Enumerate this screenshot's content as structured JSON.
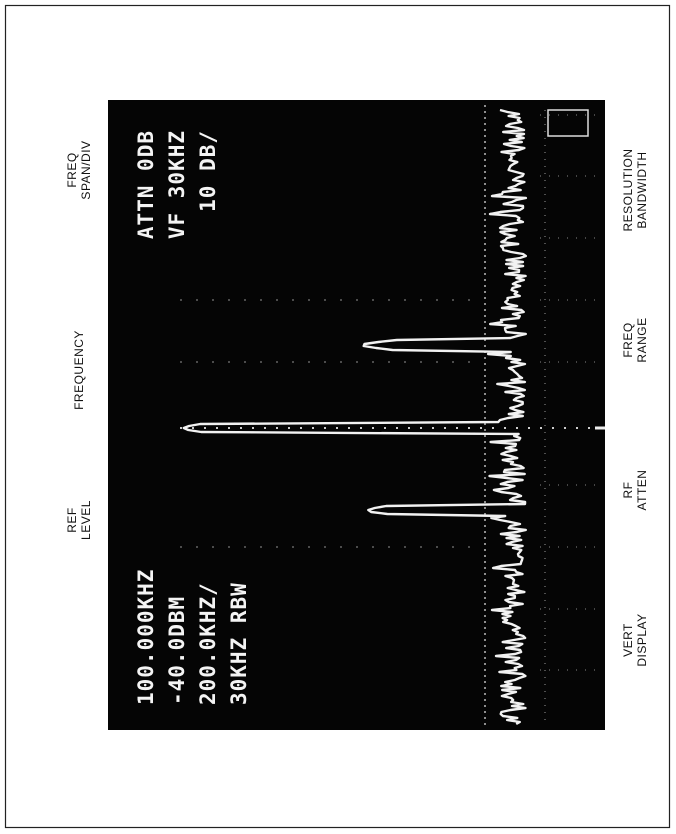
{
  "labels": {
    "top": [
      {
        "lines": [
          "REF",
          "LEVEL"
        ]
      },
      {
        "lines": [
          "FREQUENCY"
        ]
      },
      {
        "lines": [
          "FREQ",
          "SPAN/DIV"
        ]
      }
    ],
    "bottom": [
      {
        "lines": [
          "VERT",
          "DISPLAY"
        ]
      },
      {
        "lines": [
          "RF",
          "ATTEN"
        ]
      },
      {
        "lines": [
          "FREQ",
          "RANGE"
        ]
      },
      {
        "lines": [
          "RESOLUTION",
          "BANDWIDTH"
        ]
      }
    ]
  },
  "screen": {
    "readout_left": [
      "100.000KHZ",
      "-40.0DBM",
      "200.0KHZ/",
      "30KHZ RBW"
    ],
    "readout_right": [
      "ATTN 0DB",
      "VF 30KHZ",
      "10 DB/"
    ]
  }
}
